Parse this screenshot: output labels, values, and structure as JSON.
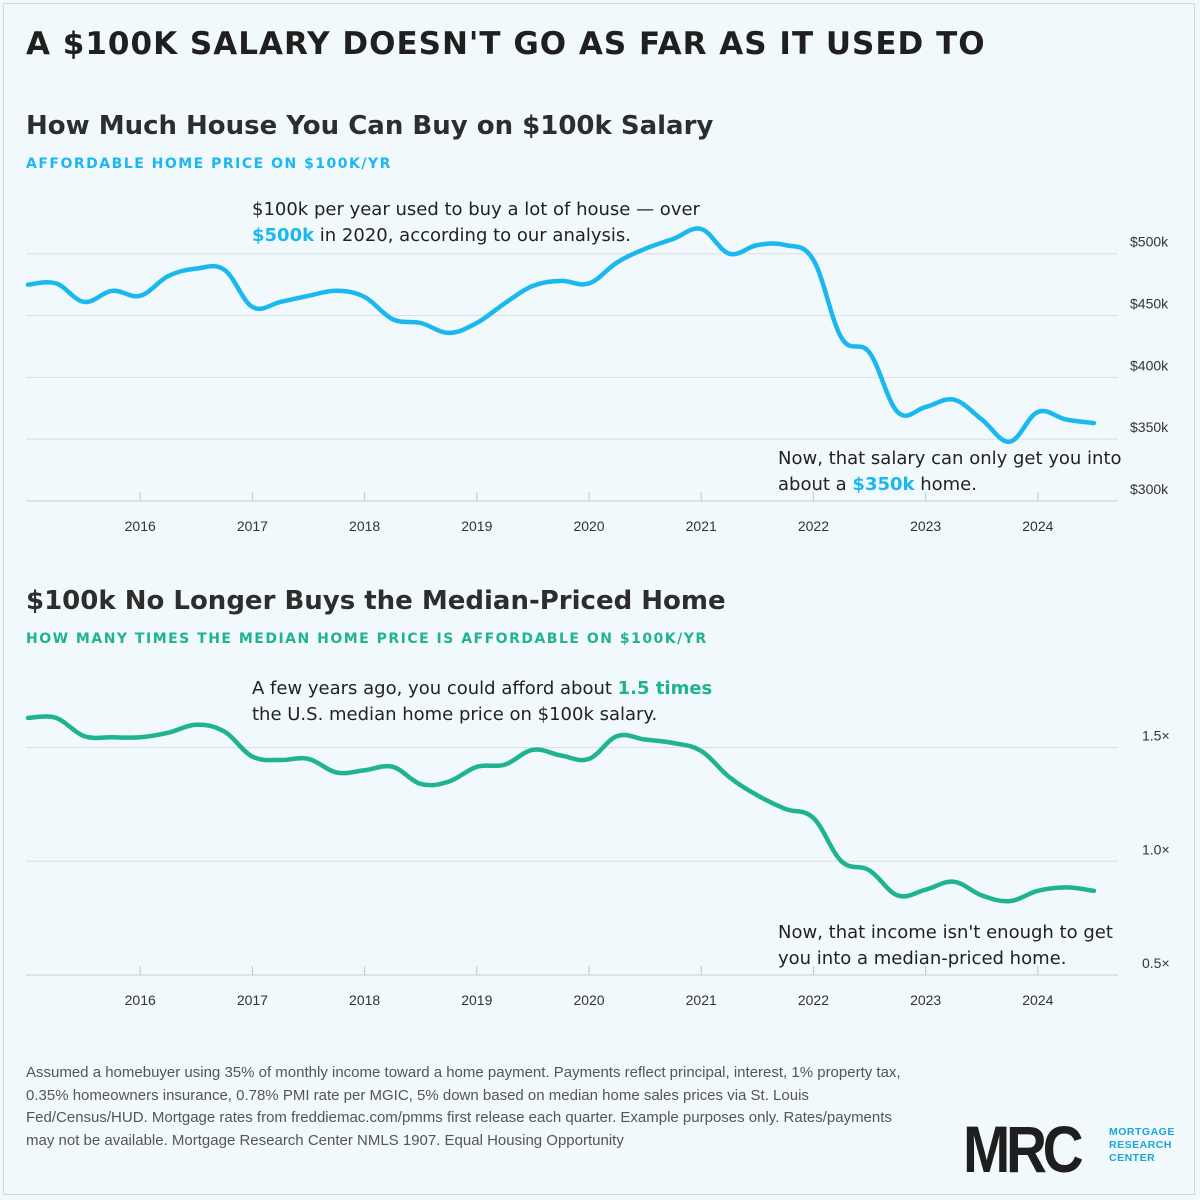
{
  "title": "A $100K SALARY DOESN'T GO AS FAR AS IT USED TO",
  "colors": {
    "chart1": "#1bb8ef",
    "chart2": "#1fb38f",
    "grid": "#d9dfe2"
  },
  "chart_data": [
    {
      "type": "line",
      "title": "How Much House You Can Buy on $100k Salary",
      "subtitle": "AFFORDABLE HOME PRICE ON $100K/YR",
      "annotation_top": {
        "line1": "$100k per year used to buy a lot of house — over",
        "highlight": "$500k",
        "line2_rest": " in 2020, according to our analysis."
      },
      "annotation_bottom": {
        "line1": "Now, that salary can only get you into",
        "prefix": "about a ",
        "highlight": "$350k",
        "suffix": " home."
      },
      "x_ticks": [
        "2016",
        "2017",
        "2018",
        "2019",
        "2020",
        "2021",
        "2022",
        "2023",
        "2024"
      ],
      "y_ticks": [
        {
          "value": 300000,
          "label": "$300k"
        },
        {
          "value": 350000,
          "label": "$350k"
        },
        {
          "value": 400000,
          "label": "$400k"
        },
        {
          "value": 450000,
          "label": "$450k"
        },
        {
          "value": 500000,
          "label": "$500k"
        }
      ],
      "ylim": [
        300000,
        520000
      ],
      "xlim": [
        2015.0,
        2024.75
      ],
      "series": [
        {
          "x": [
            2015.0,
            2015.25,
            2015.5,
            2015.75,
            2016.0,
            2016.25,
            2016.5,
            2016.75,
            2017.0,
            2017.25,
            2017.5,
            2017.75,
            2018.0,
            2018.25,
            2018.5,
            2018.75,
            2019.0,
            2019.25,
            2019.5,
            2019.75,
            2020.0,
            2020.25,
            2020.5,
            2020.75,
            2021.0,
            2021.25,
            2021.5,
            2021.75,
            2022.0,
            2022.25,
            2022.5,
            2022.75,
            2023.0,
            2023.25,
            2023.5,
            2023.75,
            2024.0,
            2024.25,
            2024.5
          ],
          "values": [
            475000,
            476000,
            461000,
            470000,
            466000,
            482000,
            488000,
            487000,
            457000,
            461000,
            466000,
            470000,
            465000,
            447000,
            444000,
            436000,
            444000,
            460000,
            474000,
            478000,
            476000,
            493000,
            504000,
            512000,
            520000,
            500000,
            507000,
            507000,
            495000,
            432000,
            420000,
            372000,
            376000,
            382000,
            366000,
            348000,
            372000,
            366000,
            363000
          ]
        }
      ]
    },
    {
      "type": "line",
      "title": "$100k No Longer Buys the Median-Priced Home",
      "subtitle": "HOW MANY TIMES THE MEDIAN HOME PRICE IS AFFORDABLE ON $100K/YR",
      "annotation_top": {
        "line1_prefix": "A few years ago, you could afford about ",
        "highlight": "1.5 times",
        "line2": "the U.S. median home price on $100k salary."
      },
      "annotation_bottom": {
        "line1": "Now, that income isn't enough to get",
        "line2": "you into a median-priced home."
      },
      "x_ticks": [
        "2016",
        "2017",
        "2018",
        "2019",
        "2020",
        "2021",
        "2022",
        "2023",
        "2024"
      ],
      "y_ticks": [
        {
          "value": 0.5,
          "label": "0.5×"
        },
        {
          "value": 1.0,
          "label": "1.0×"
        },
        {
          "value": 1.5,
          "label": "1.5×"
        }
      ],
      "ylim": [
        0.5,
        1.7
      ],
      "xlim": [
        2015.0,
        2024.75
      ],
      "series": [
        {
          "x": [
            2015.0,
            2015.25,
            2015.5,
            2015.75,
            2016.0,
            2016.25,
            2016.5,
            2016.75,
            2017.0,
            2017.25,
            2017.5,
            2017.75,
            2018.0,
            2018.25,
            2018.5,
            2018.75,
            2019.0,
            2019.25,
            2019.5,
            2019.75,
            2020.0,
            2020.25,
            2020.5,
            2020.75,
            2021.0,
            2021.25,
            2021.5,
            2021.75,
            2022.0,
            2022.25,
            2022.5,
            2022.75,
            2023.0,
            2023.25,
            2023.5,
            2023.75,
            2024.0,
            2024.25,
            2024.5
          ],
          "values": [
            1.63,
            1.63,
            1.55,
            1.545,
            1.545,
            1.565,
            1.6,
            1.57,
            1.46,
            1.445,
            1.45,
            1.39,
            1.4,
            1.415,
            1.34,
            1.35,
            1.415,
            1.425,
            1.49,
            1.465,
            1.45,
            1.55,
            1.535,
            1.52,
            1.485,
            1.37,
            1.29,
            1.23,
            1.19,
            1.0,
            0.96,
            0.85,
            0.875,
            0.91,
            0.85,
            0.825,
            0.87,
            0.885,
            0.87
          ]
        }
      ]
    }
  ],
  "footnote": "Assumed a homebuyer using 35% of monthly income toward a home payment. Payments reflect principal, interest, 1% property tax, 0.35% homeowners insurance, 0.78% PMI rate per MGIC, 5% down based on median home sales prices via St. Louis Fed/Census/HUD. Mortgage rates from freddiemac.com/pmms first release each quarter. Example purposes only. Rates/payments may not be available. Mortgage Research Center NMLS 1907. Equal Housing Opportunity",
  "logo": {
    "mark": "MRC",
    "line1": "MORTGAGE",
    "line2": "RESEARCH",
    "line3": "CENTER"
  }
}
